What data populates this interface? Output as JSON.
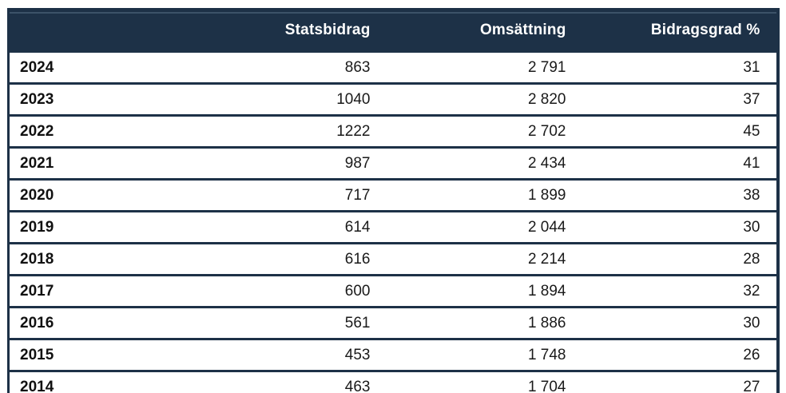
{
  "colors": {
    "header_bg": "#1d3147",
    "header_text": "#ffffff",
    "header_top_highlight": "#5c7389",
    "border": "#1d3147",
    "body_text": "#1a1a1a",
    "row_bg": "#ffffff"
  },
  "table": {
    "columns": [
      {
        "label": ""
      },
      {
        "label": "Statsbidrag"
      },
      {
        "label": "Omsättning"
      },
      {
        "label": "Bidragsgrad %"
      }
    ],
    "rows": [
      {
        "year": "2024",
        "statsbidrag": "863",
        "omsattning": "2 791",
        "bidragsgrad": "31"
      },
      {
        "year": "2023",
        "statsbidrag": "1040",
        "omsattning": "2 820",
        "bidragsgrad": "37"
      },
      {
        "year": "2022",
        "statsbidrag": "1222",
        "omsattning": "2 702",
        "bidragsgrad": "45"
      },
      {
        "year": "2021",
        "statsbidrag": "987",
        "omsattning": "2 434",
        "bidragsgrad": "41"
      },
      {
        "year": "2020",
        "statsbidrag": "717",
        "omsattning": "1 899",
        "bidragsgrad": "38"
      },
      {
        "year": "2019",
        "statsbidrag": "614",
        "omsattning": "2 044",
        "bidragsgrad": "30"
      },
      {
        "year": "2018",
        "statsbidrag": "616",
        "omsattning": "2 214",
        "bidragsgrad": "28"
      },
      {
        "year": "2017",
        "statsbidrag": "600",
        "omsattning": "1 894",
        "bidragsgrad": "32"
      },
      {
        "year": "2016",
        "statsbidrag": "561",
        "omsattning": "1 886",
        "bidragsgrad": "30"
      },
      {
        "year": "2015",
        "statsbidrag": "453",
        "omsattning": "1 748",
        "bidragsgrad": "26"
      },
      {
        "year": "2014",
        "statsbidrag": "463",
        "omsattning": "1 704",
        "bidragsgrad": "27"
      }
    ]
  },
  "chart_data": {
    "type": "table",
    "title": "",
    "columns": [
      "",
      "Statsbidrag",
      "Omsättning",
      "Bidragsgrad %"
    ],
    "rows": [
      [
        "2024",
        863,
        2791,
        31
      ],
      [
        "2023",
        1040,
        2820,
        37
      ],
      [
        "2022",
        1222,
        2702,
        45
      ],
      [
        "2021",
        987,
        2434,
        41
      ],
      [
        "2020",
        717,
        1899,
        38
      ],
      [
        "2019",
        614,
        2044,
        30
      ],
      [
        "2018",
        616,
        2214,
        28
      ],
      [
        "2017",
        600,
        1894,
        32
      ],
      [
        "2016",
        561,
        1886,
        30
      ],
      [
        "2015",
        453,
        1748,
        26
      ],
      [
        "2014",
        463,
        1704,
        27
      ]
    ],
    "layout_hints": {
      "header_style": "dark-navy with white bold text",
      "row_separators": "thick navy horizontal lines, no vertical column lines",
      "numeric_alignment": "right",
      "year_alignment": "left-bold"
    }
  }
}
